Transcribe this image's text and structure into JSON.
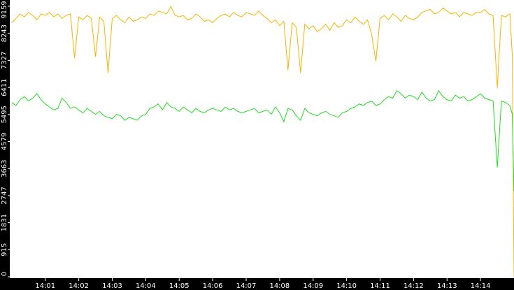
{
  "chart_data": {
    "type": "line",
    "x": [
      0,
      0.125,
      0.25,
      0.375,
      0.5,
      0.625,
      0.75,
      0.875,
      1,
      1.125,
      1.25,
      1.375,
      1.5,
      1.625,
      1.75,
      1.875,
      2,
      2.125,
      2.25,
      2.375,
      2.5,
      2.625,
      2.75,
      2.875,
      3,
      3.125,
      3.25,
      3.375,
      3.5,
      3.625,
      3.75,
      3.875,
      4,
      4.125,
      4.25,
      4.375,
      4.5,
      4.625,
      4.75,
      4.875,
      5,
      5.125,
      5.25,
      5.375,
      5.5,
      5.625,
      5.75,
      5.875,
      6,
      6.125,
      6.25,
      6.375,
      6.5,
      6.625,
      6.75,
      6.875,
      7,
      7.125,
      7.25,
      7.375,
      7.5,
      7.625,
      7.75,
      7.875,
      8,
      8.125,
      8.25,
      8.375,
      8.5,
      8.625,
      8.75,
      8.875,
      9,
      9.125,
      9.25,
      9.375,
      9.5,
      9.625,
      9.75,
      9.875,
      10,
      10.125,
      10.25,
      10.375,
      10.5,
      10.625,
      10.75,
      10.875,
      11,
      11.125,
      11.25,
      11.375,
      11.5,
      11.625,
      11.75,
      11.875,
      12,
      12.125,
      12.25,
      12.375,
      12.5,
      12.625,
      12.75,
      12.875,
      13,
      13.125,
      13.25,
      13.375,
      13.5,
      13.625,
      13.75,
      13.875,
      14,
      14.125,
      14.25,
      14.375,
      14.5,
      14.625,
      14.75,
      14.875,
      14.95,
      15
    ],
    "series": [
      {
        "color": "#f5b400",
        "values": [
          8600,
          8750,
          8900,
          8800,
          8950,
          8850,
          8700,
          8900,
          8850,
          8950,
          8800,
          8900,
          8750,
          8850,
          8900,
          7400,
          8800,
          8700,
          8850,
          8750,
          7450,
          8800,
          8650,
          6900,
          8750,
          8850,
          8700,
          8600,
          8800,
          8650,
          8700,
          8800,
          8750,
          8900,
          8850,
          9000,
          8950,
          8900,
          9150,
          8850,
          8800,
          8850,
          8700,
          8750,
          8900,
          8800,
          8650,
          8700,
          8600,
          8750,
          8850,
          8900,
          8800,
          8950,
          8850,
          8800,
          8950,
          8900,
          8850,
          9000,
          8850,
          8750,
          8600,
          8700,
          8500,
          8650,
          7000,
          8600,
          8450,
          6900,
          8550,
          8400,
          8500,
          8300,
          8400,
          8550,
          8350,
          8600,
          8450,
          8500,
          8700,
          8600,
          8800,
          8650,
          8550,
          8700,
          8200,
          7300,
          8750,
          8850,
          8700,
          8900,
          8800,
          8650,
          8850,
          8750,
          8700,
          8800,
          8950,
          9000,
          9050,
          8900,
          8950,
          9100,
          9000,
          8900,
          8950,
          8800,
          8950,
          8900,
          8850,
          8950,
          8950,
          9050,
          8900,
          8850,
          6400,
          8850,
          8800,
          8900,
          7500,
          0
        ]
      },
      {
        "color": "#22dd22",
        "values": [
          5900,
          5800,
          6000,
          6100,
          5950,
          6050,
          6200,
          6000,
          5850,
          5750,
          5650,
          5700,
          6050,
          5900,
          5700,
          5750,
          5650,
          5550,
          5700,
          5600,
          5500,
          5600,
          5450,
          5400,
          5350,
          5500,
          5450,
          5300,
          5400,
          5350,
          5300,
          5450,
          5500,
          5700,
          5750,
          5850,
          5650,
          5900,
          5750,
          5700,
          5600,
          5750,
          5650,
          5550,
          5700,
          5600,
          5550,
          5650,
          5700,
          5650,
          5600,
          5750,
          5650,
          5700,
          5600,
          5550,
          5600,
          5650,
          5700,
          5550,
          5600,
          5650,
          5500,
          5750,
          5550,
          5250,
          5700,
          5650,
          5450,
          5300,
          5700,
          5550,
          5500,
          5450,
          5550,
          5600,
          5500,
          5450,
          5400,
          5550,
          5600,
          5700,
          5750,
          5850,
          5800,
          5900,
          5950,
          5800,
          5850,
          6000,
          6100,
          6050,
          6300,
          6200,
          6050,
          6150,
          6100,
          6000,
          6250,
          6050,
          5950,
          6000,
          6300,
          6100,
          6000,
          5950,
          6150,
          6050,
          6100,
          5950,
          6000,
          6100,
          6200,
          6050,
          6000,
          5950,
          3700,
          5950,
          5900,
          5800,
          5500,
          2900
        ]
      }
    ],
    "xlim": [
      -0.06,
      15
    ],
    "xticks": [
      {
        "value": 1,
        "label": "14:01"
      },
      {
        "value": 2,
        "label": "14:02"
      },
      {
        "value": 3,
        "label": "14:03"
      },
      {
        "value": 4,
        "label": "14:04"
      },
      {
        "value": 5,
        "label": "14:05"
      },
      {
        "value": 6,
        "label": "14:06"
      },
      {
        "value": 7,
        "label": "14:07"
      },
      {
        "value": 8,
        "label": "14:08"
      },
      {
        "value": 9,
        "label": "14:09"
      },
      {
        "value": 10,
        "label": "14:10"
      },
      {
        "value": 11,
        "label": "14:11"
      },
      {
        "value": 12,
        "label": "14:12"
      },
      {
        "value": 13,
        "label": "14:13"
      },
      {
        "value": 14,
        "label": "14:14"
      }
    ],
    "ylim": [
      0,
      9159
    ],
    "yticks": [
      0,
      915,
      1831,
      2747,
      3663,
      4579,
      5495,
      6411,
      7327,
      8243,
      9159
    ]
  }
}
